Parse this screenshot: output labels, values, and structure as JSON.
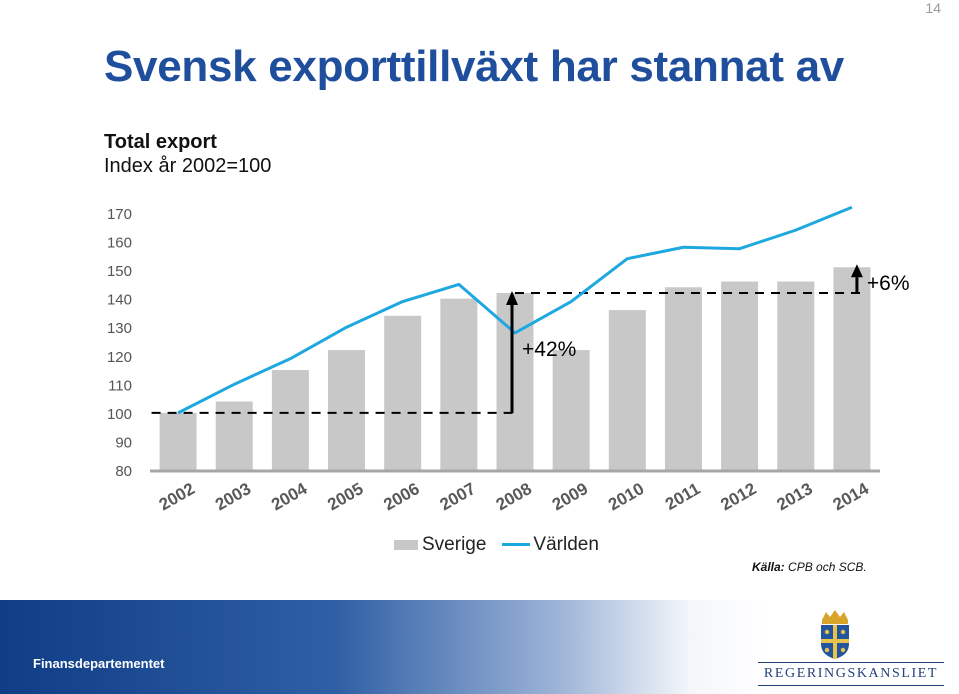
{
  "page_number": "14",
  "title": "Svensk exporttillväxt har stannat av",
  "subtitle_line1": "Total export",
  "subtitle_line2": "Index år 2002=100",
  "chart_data": {
    "type": "bar",
    "title": "Total export",
    "subtitle": "Index år 2002=100",
    "categories": [
      "2002",
      "2003",
      "2004",
      "2005",
      "2006",
      "2007",
      "2008",
      "2009",
      "2010",
      "2011",
      "2012",
      "2013",
      "2014"
    ],
    "series": [
      {
        "name": "Sverige",
        "type": "bar",
        "color": "#c8c8c8",
        "values": [
          100,
          104,
          115,
          122,
          134,
          140,
          142,
          122,
          136,
          144,
          146,
          146,
          151
        ]
      },
      {
        "name": "Världen",
        "type": "line",
        "color": "#1ea8e0",
        "values": [
          100,
          110,
          119,
          130,
          139,
          145,
          128,
          139,
          154,
          158,
          157.5,
          164,
          172
        ]
      }
    ],
    "yticks": [
      80,
      90,
      100,
      110,
      120,
      130,
      140,
      150,
      160,
      170
    ],
    "ylim": [
      80,
      170
    ],
    "grid": false,
    "legend": "bottom",
    "annotations": [
      {
        "text": "+42%",
        "from": 100,
        "to": 142,
        "x": "2008"
      },
      {
        "text": "+6%",
        "from": 142,
        "to": 151,
        "x": "2014"
      }
    ]
  },
  "legend": {
    "bar_label": "Sverige",
    "line_label": "Världen"
  },
  "source": {
    "label": "Källa:",
    "text": " CPB och SCB."
  },
  "footer": {
    "department": "Finansdepartementet",
    "organization": "REGERINGSKANSLIET"
  },
  "colors": {
    "title": "#1f4e9c",
    "bar": "#c8c8c8",
    "line": "#1ea8e0",
    "footer_dark": "#0f3d86"
  },
  "icons": {
    "logo": "crown-crest-icon"
  }
}
